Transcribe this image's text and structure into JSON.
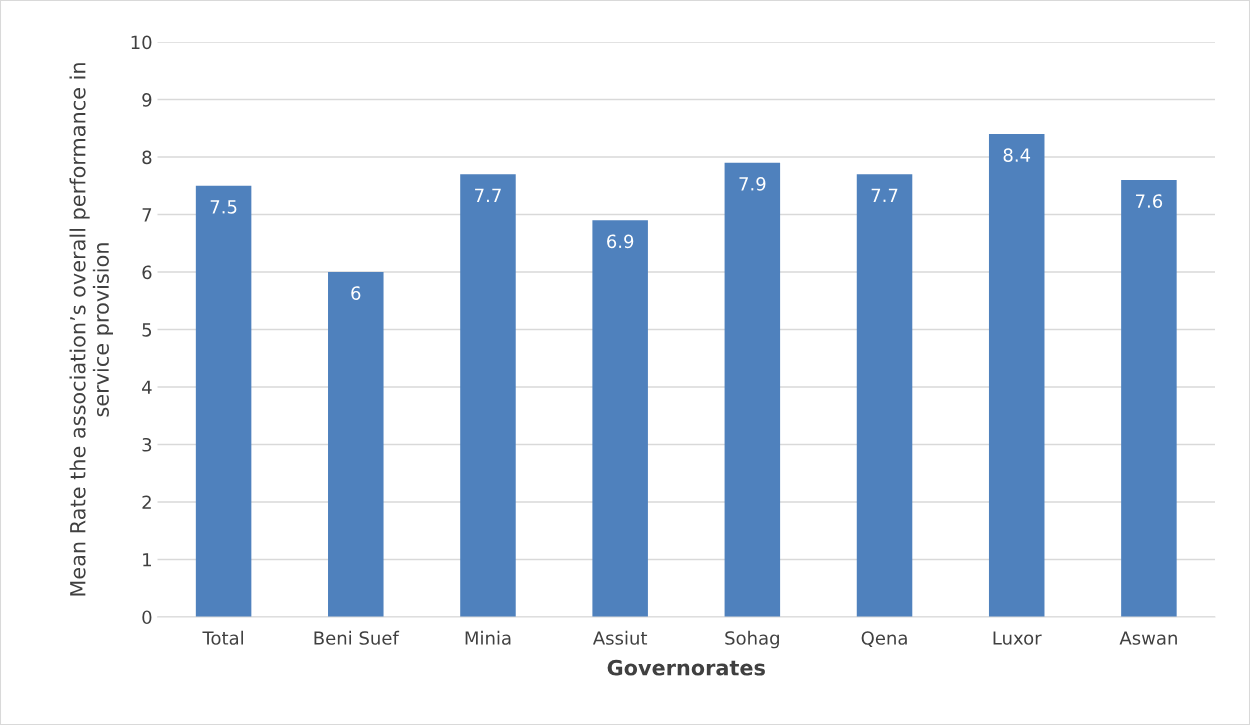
{
  "chart_data": {
    "type": "bar",
    "xlabel": "Governorates",
    "ylabel": "Mean Rate the association’s overall performance in\nservice provision",
    "categories": [
      "Total",
      "Beni Suef",
      "Minia",
      "Assiut",
      "Sohag",
      "Qena",
      "Luxor",
      "Aswan"
    ],
    "values": [
      7.5,
      6,
      7.7,
      6.9,
      7.9,
      7.7,
      8.4,
      7.6
    ],
    "color": "#4f81bd",
    "ylim": [
      0,
      10
    ],
    "yticks": [
      0,
      1,
      2,
      3,
      4,
      5,
      6,
      7,
      8,
      9,
      10
    ],
    "grid": "y",
    "data_labels": true,
    "legend": false
  }
}
